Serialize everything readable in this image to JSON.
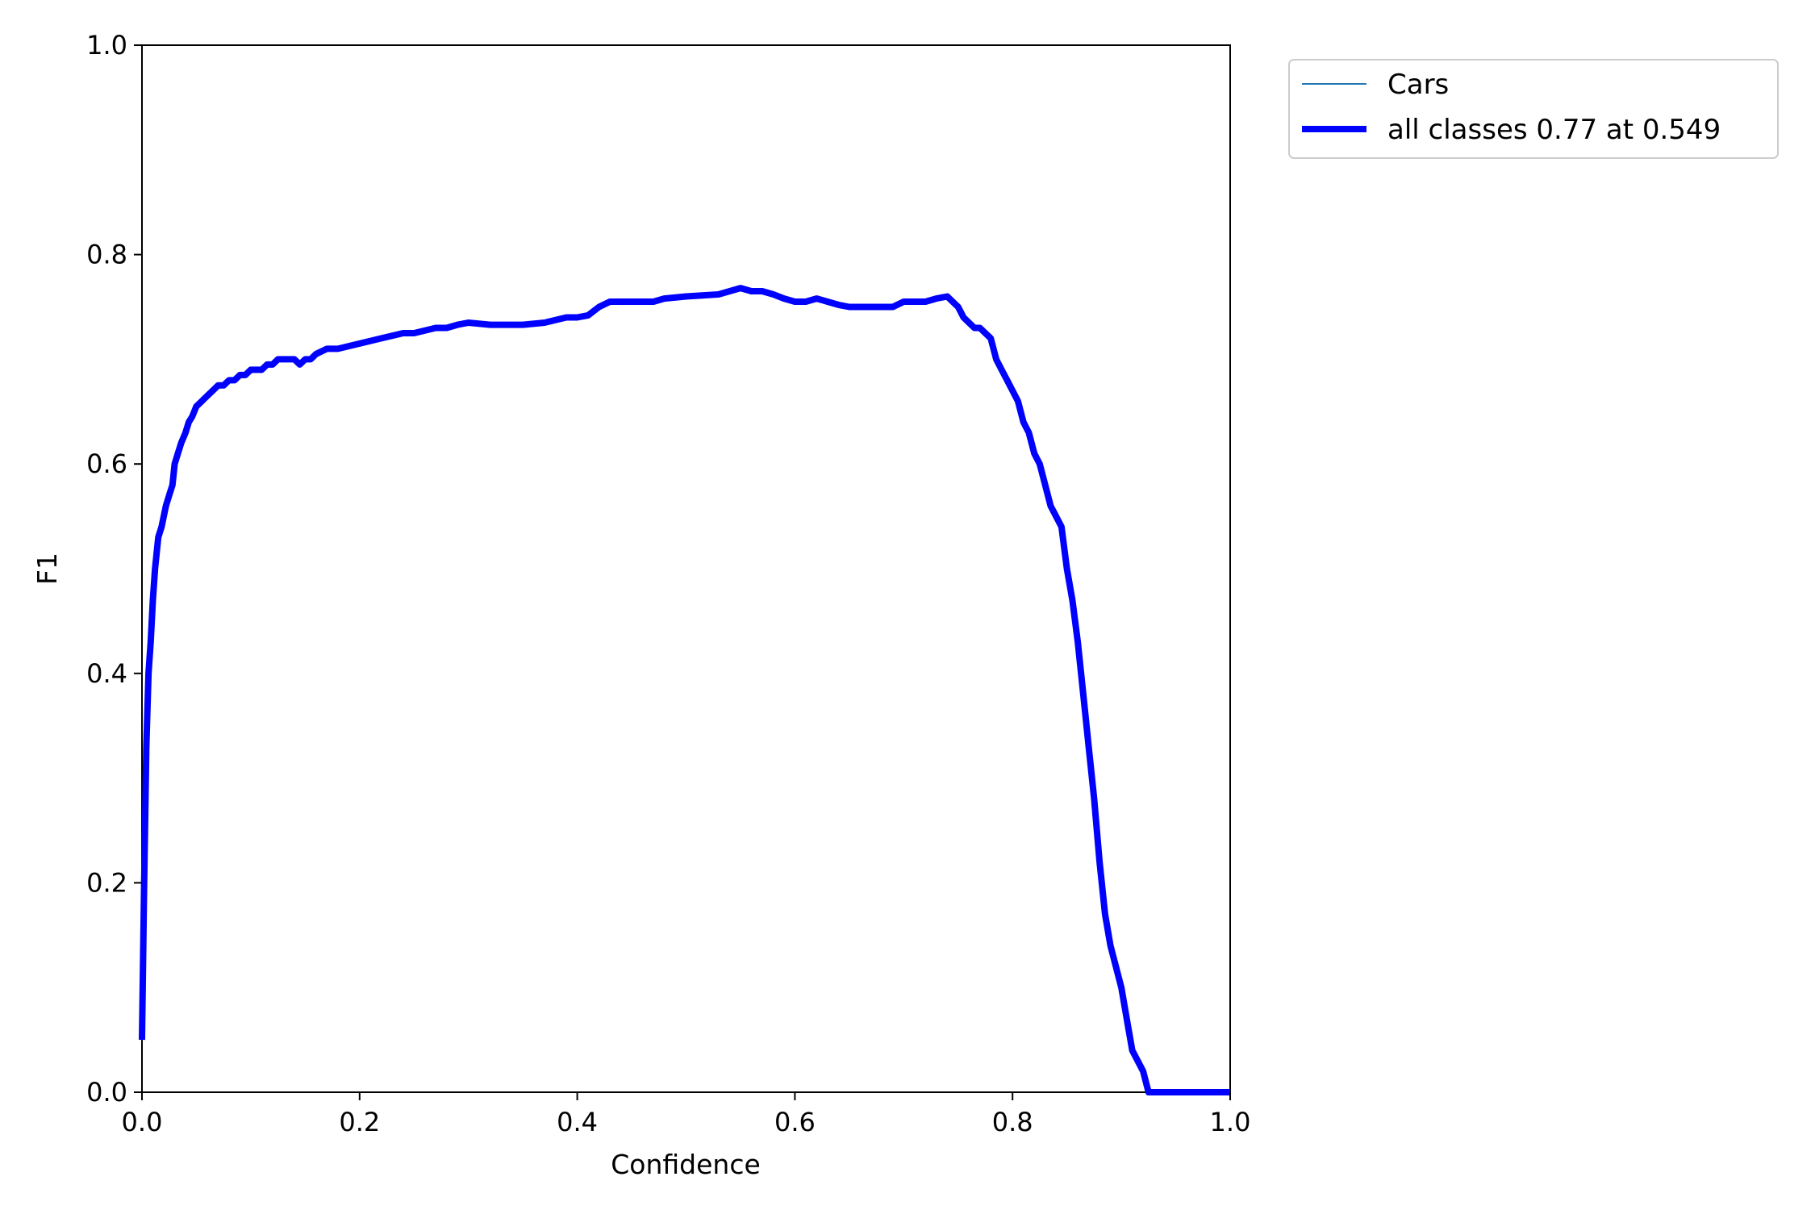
{
  "chart_data": {
    "type": "line",
    "title": "",
    "xlabel": "Confidence",
    "ylabel": "F1",
    "xlim": [
      0,
      1
    ],
    "ylim": [
      0,
      1
    ],
    "xticks": [
      "0.0",
      "0.2",
      "0.4",
      "0.6",
      "0.8",
      "1.0"
    ],
    "yticks": [
      "0.0",
      "0.2",
      "0.4",
      "0.6",
      "0.8",
      "1.0"
    ],
    "grid": false,
    "legend_position": "outside-upper-right",
    "series": [
      {
        "name": "Cars",
        "color": "#1f77b4",
        "linewidth": "thin",
        "x": [
          0.0,
          0.002,
          0.004,
          0.006,
          0.008,
          0.01,
          0.012,
          0.015,
          0.018,
          0.02,
          0.022,
          0.025,
          0.028,
          0.03,
          0.033,
          0.036,
          0.04,
          0.043,
          0.046,
          0.05,
          0.055,
          0.06,
          0.065,
          0.07,
          0.075,
          0.08,
          0.085,
          0.09,
          0.095,
          0.1,
          0.11,
          0.115,
          0.12,
          0.125,
          0.13,
          0.14,
          0.145,
          0.15,
          0.155,
          0.16,
          0.17,
          0.18,
          0.2,
          0.22,
          0.24,
          0.25,
          0.27,
          0.28,
          0.29,
          0.3,
          0.32,
          0.34,
          0.35,
          0.37,
          0.39,
          0.4,
          0.41,
          0.42,
          0.43,
          0.44,
          0.47,
          0.48,
          0.5,
          0.53,
          0.54,
          0.55,
          0.56,
          0.57,
          0.58,
          0.59,
          0.6,
          0.61,
          0.62,
          0.63,
          0.64,
          0.65,
          0.66,
          0.68,
          0.69,
          0.7,
          0.72,
          0.73,
          0.74,
          0.745,
          0.75,
          0.755,
          0.76,
          0.765,
          0.77,
          0.775,
          0.78,
          0.785,
          0.79,
          0.795,
          0.8,
          0.805,
          0.81,
          0.815,
          0.82,
          0.825,
          0.83,
          0.835,
          0.84,
          0.845,
          0.85,
          0.855,
          0.86,
          0.865,
          0.87,
          0.875,
          0.88,
          0.885,
          0.89,
          0.9,
          0.905,
          0.91,
          0.92,
          0.925,
          1.0
        ],
        "values": [
          0.05,
          0.2,
          0.33,
          0.4,
          0.43,
          0.47,
          0.5,
          0.53,
          0.54,
          0.55,
          0.56,
          0.57,
          0.58,
          0.6,
          0.61,
          0.62,
          0.63,
          0.64,
          0.645,
          0.655,
          0.66,
          0.665,
          0.67,
          0.675,
          0.675,
          0.68,
          0.68,
          0.685,
          0.685,
          0.69,
          0.69,
          0.695,
          0.695,
          0.7,
          0.7,
          0.7,
          0.695,
          0.7,
          0.7,
          0.705,
          0.71,
          0.71,
          0.715,
          0.72,
          0.725,
          0.725,
          0.73,
          0.73,
          0.733,
          0.735,
          0.733,
          0.733,
          0.733,
          0.735,
          0.74,
          0.74,
          0.742,
          0.75,
          0.755,
          0.755,
          0.755,
          0.758,
          0.76,
          0.762,
          0.765,
          0.768,
          0.765,
          0.765,
          0.762,
          0.758,
          0.755,
          0.755,
          0.758,
          0.755,
          0.752,
          0.75,
          0.75,
          0.75,
          0.75,
          0.755,
          0.755,
          0.758,
          0.76,
          0.755,
          0.75,
          0.74,
          0.735,
          0.73,
          0.73,
          0.725,
          0.72,
          0.7,
          0.69,
          0.68,
          0.67,
          0.66,
          0.64,
          0.63,
          0.61,
          0.6,
          0.58,
          0.56,
          0.55,
          0.54,
          0.5,
          0.47,
          0.43,
          0.38,
          0.33,
          0.28,
          0.22,
          0.17,
          0.14,
          0.1,
          0.07,
          0.04,
          0.02,
          0.0,
          0.0
        ]
      },
      {
        "name": "all classes 0.77 at 0.549",
        "color": "#0000ff",
        "linewidth": "thick",
        "x": [
          0.0,
          0.002,
          0.004,
          0.006,
          0.008,
          0.01,
          0.012,
          0.015,
          0.018,
          0.02,
          0.022,
          0.025,
          0.028,
          0.03,
          0.033,
          0.036,
          0.04,
          0.043,
          0.046,
          0.05,
          0.055,
          0.06,
          0.065,
          0.07,
          0.075,
          0.08,
          0.085,
          0.09,
          0.095,
          0.1,
          0.11,
          0.115,
          0.12,
          0.125,
          0.13,
          0.14,
          0.145,
          0.15,
          0.155,
          0.16,
          0.17,
          0.18,
          0.2,
          0.22,
          0.24,
          0.25,
          0.27,
          0.28,
          0.29,
          0.3,
          0.32,
          0.34,
          0.35,
          0.37,
          0.39,
          0.4,
          0.41,
          0.42,
          0.43,
          0.44,
          0.47,
          0.48,
          0.5,
          0.53,
          0.54,
          0.55,
          0.56,
          0.57,
          0.58,
          0.59,
          0.6,
          0.61,
          0.62,
          0.63,
          0.64,
          0.65,
          0.66,
          0.68,
          0.69,
          0.7,
          0.72,
          0.73,
          0.74,
          0.745,
          0.75,
          0.755,
          0.76,
          0.765,
          0.77,
          0.775,
          0.78,
          0.785,
          0.79,
          0.795,
          0.8,
          0.805,
          0.81,
          0.815,
          0.82,
          0.825,
          0.83,
          0.835,
          0.84,
          0.845,
          0.85,
          0.855,
          0.86,
          0.865,
          0.87,
          0.875,
          0.88,
          0.885,
          0.89,
          0.9,
          0.905,
          0.91,
          0.92,
          0.925,
          1.0
        ],
        "values": [
          0.05,
          0.2,
          0.33,
          0.4,
          0.43,
          0.47,
          0.5,
          0.53,
          0.54,
          0.55,
          0.56,
          0.57,
          0.58,
          0.6,
          0.61,
          0.62,
          0.63,
          0.64,
          0.645,
          0.655,
          0.66,
          0.665,
          0.67,
          0.675,
          0.675,
          0.68,
          0.68,
          0.685,
          0.685,
          0.69,
          0.69,
          0.695,
          0.695,
          0.7,
          0.7,
          0.7,
          0.695,
          0.7,
          0.7,
          0.705,
          0.71,
          0.71,
          0.715,
          0.72,
          0.725,
          0.725,
          0.73,
          0.73,
          0.733,
          0.735,
          0.733,
          0.733,
          0.733,
          0.735,
          0.74,
          0.74,
          0.742,
          0.75,
          0.755,
          0.755,
          0.755,
          0.758,
          0.76,
          0.762,
          0.765,
          0.768,
          0.765,
          0.765,
          0.762,
          0.758,
          0.755,
          0.755,
          0.758,
          0.755,
          0.752,
          0.75,
          0.75,
          0.75,
          0.75,
          0.755,
          0.755,
          0.758,
          0.76,
          0.755,
          0.75,
          0.74,
          0.735,
          0.73,
          0.73,
          0.725,
          0.72,
          0.7,
          0.69,
          0.68,
          0.67,
          0.66,
          0.64,
          0.63,
          0.61,
          0.6,
          0.58,
          0.56,
          0.55,
          0.54,
          0.5,
          0.47,
          0.43,
          0.38,
          0.33,
          0.28,
          0.22,
          0.17,
          0.14,
          0.1,
          0.07,
          0.04,
          0.02,
          0.0,
          0.0
        ]
      }
    ]
  }
}
